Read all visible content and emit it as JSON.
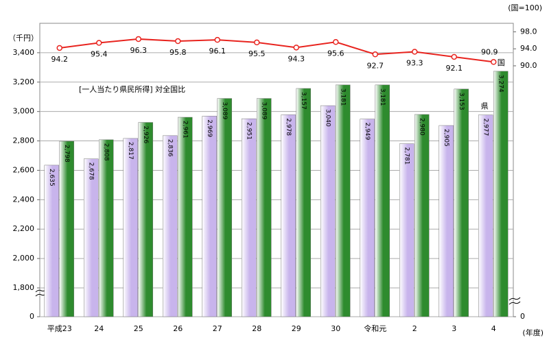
{
  "chart_data": {
    "type": "bar",
    "annotation": "[一人当たり県民所得] 対全国比",
    "y_unit": "（千円）",
    "y2_unit": "(国=100)",
    "x_unit": "(年度)",
    "categories": [
      "平成23",
      "24",
      "25",
      "26",
      "27",
      "28",
      "29",
      "30",
      "令和元",
      "2",
      "3",
      "4"
    ],
    "series": [
      {
        "name": "県",
        "color": "#c8b4ec",
        "values": [
          2635,
          2678,
          2817,
          2836,
          2969,
          2951,
          2978,
          3040,
          2949,
          2781,
          2905,
          2977
        ],
        "value_labels": [
          "2,635",
          "2,678",
          "2,817",
          "2,836",
          "2,969",
          "2,951",
          "2,978",
          "3,040",
          "2,949",
          "2,781",
          "2,905",
          "2,977"
        ]
      },
      {
        "name": "国",
        "color": "#2e8b2e",
        "values": [
          2798,
          2808,
          2926,
          2961,
          3089,
          3089,
          3157,
          3181,
          3181,
          2980,
          3153,
          3274
        ],
        "value_labels": [
          "2,798",
          "2,808",
          "2,926",
          "2,961",
          "3,089",
          "3,089",
          "3,157",
          "3,181",
          "3,181",
          "2,980",
          "3,153",
          "3,274"
        ]
      }
    ],
    "ratio": {
      "type": "line",
      "axis": "y2",
      "color": "#e8231e",
      "values": [
        94.2,
        95.4,
        96.3,
        95.8,
        96.1,
        95.5,
        94.3,
        95.6,
        92.7,
        93.3,
        92.1,
        90.9
      ]
    },
    "ylim": [
      0,
      3600
    ],
    "ybreak": [
      0,
      1800
    ],
    "yticks": [
      0,
      {
        "value": 1800,
        "label": "1,800"
      },
      {
        "value": 2000,
        "label": "2,000"
      },
      {
        "value": 2200,
        "label": "2,200"
      },
      {
        "value": 2400,
        "label": "2,400"
      },
      {
        "value": 2600,
        "label": "2,600"
      },
      {
        "value": 2800,
        "label": "2,800"
      },
      {
        "value": 3000,
        "label": "3,000"
      },
      {
        "value": 3200,
        "label": "3,200"
      },
      {
        "value": 3400,
        "label": "3,400"
      }
    ],
    "y2lim": [
      0,
      100
    ],
    "y2break": [
      0,
      90
    ],
    "y2ticks": [
      0,
      {
        "value": 90,
        "label": "90.0"
      },
      {
        "value": 94,
        "label": "94.0"
      },
      {
        "value": 98,
        "label": "98.0"
      }
    ],
    "grid": true
  }
}
